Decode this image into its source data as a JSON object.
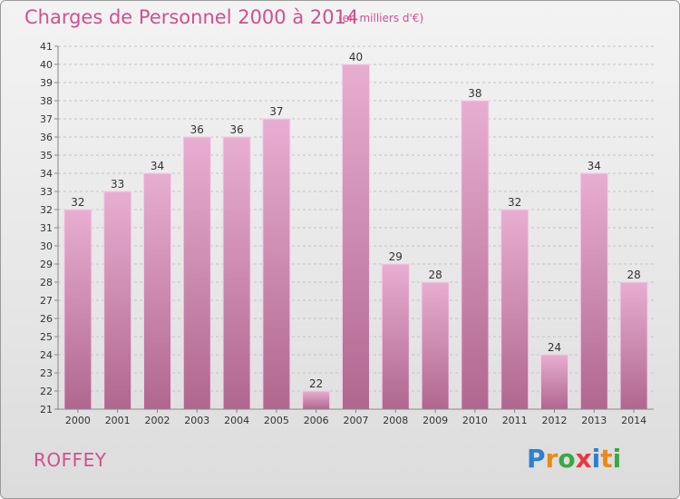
{
  "title": "Charges de Personnel 2000 à 2014",
  "subtitle": "(en milliers d'€)",
  "commune": "ROFFEY",
  "brand": {
    "letters": [
      "P",
      "r",
      "o",
      "x",
      "i",
      "t",
      "i"
    ],
    "colors": [
      "#2e7fd0",
      "#e88a1a",
      "#3aa843",
      "#e8383d",
      "#2e7fd0",
      "#e88a1a",
      "#3aa843"
    ]
  },
  "colors": {
    "bar_top": "#e8aed2",
    "bar_bottom": "#b0678f",
    "bar_stroke": "#f3cfe4",
    "accent": "#d0508e"
  },
  "chart_data": {
    "type": "bar",
    "categories": [
      "2000",
      "2001",
      "2002",
      "2003",
      "2004",
      "2005",
      "2006",
      "2007",
      "2008",
      "2009",
      "2010",
      "2011",
      "2012",
      "2013",
      "2014"
    ],
    "values": [
      32,
      33,
      34,
      36,
      36,
      37,
      22,
      40,
      29,
      28,
      38,
      32,
      24,
      34,
      28
    ],
    "ylim": [
      21,
      41
    ],
    "yticks": [
      21,
      22,
      23,
      24,
      25,
      26,
      27,
      28,
      29,
      30,
      31,
      32,
      33,
      34,
      35,
      36,
      37,
      38,
      39,
      40,
      41
    ],
    "grid": true,
    "data_labels": true
  }
}
